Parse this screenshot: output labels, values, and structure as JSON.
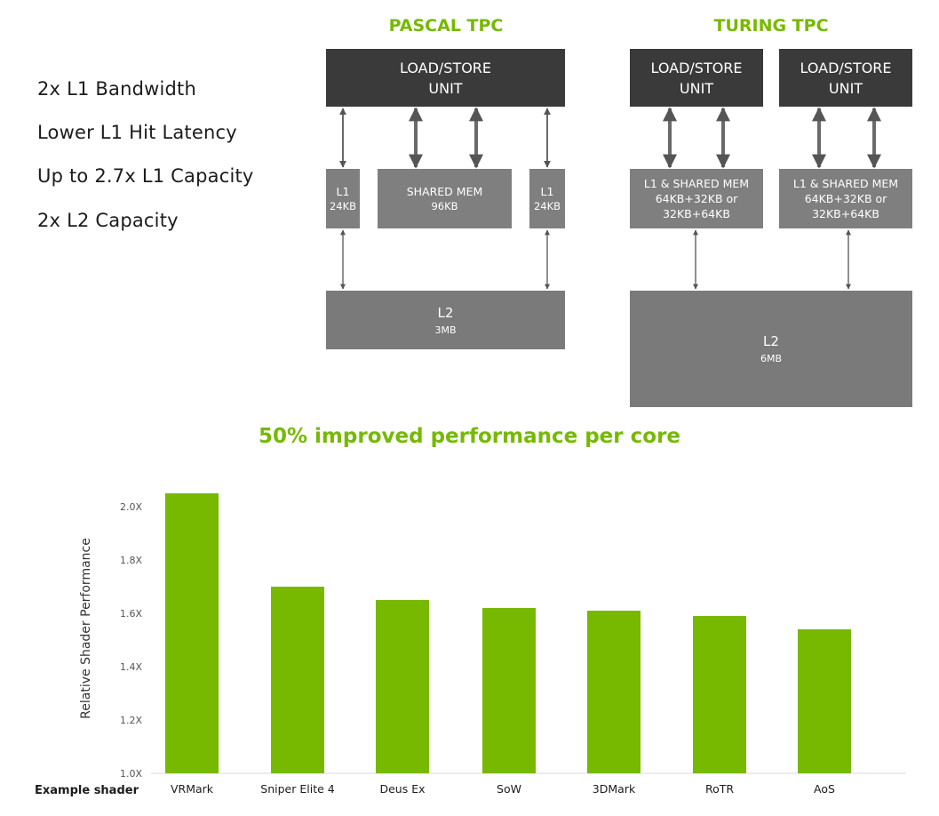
{
  "features": [
    "2x L1 Bandwidth",
    "Lower L1 Hit Latency",
    "Up to 2.7x L1 Capacity",
    "2x L2 Capacity"
  ],
  "pascal": {
    "title": "PASCAL TPC",
    "ls_line1": "LOAD/STORE",
    "ls_line2": "UNIT",
    "l1_label": "L1",
    "l1_size": "24KB",
    "shared_label": "SHARED MEM",
    "shared_size": "96KB",
    "l2_label": "L2",
    "l2_size": "3MB"
  },
  "turing": {
    "title": "TURING TPC",
    "ls_line1": "LOAD/STORE",
    "ls_line2": "UNIT",
    "l1_line1": "L1 & SHARED MEM",
    "l1_line2": "64KB+32KB or",
    "l1_line3": "32KB+64KB",
    "l2_label": "L2",
    "l2_size": "6MB"
  },
  "colors": {
    "accent": "#76b900",
    "dark_box": "#3a3a3a",
    "mid_box": "#7f7f7f"
  },
  "chart_data": {
    "type": "bar",
    "title": "50% improved performance per core",
    "ylabel": "Relative Shader Performance",
    "xrow_label": "Example shader",
    "categories": [
      "VRMark",
      "Sniper Elite 4",
      "Deus Ex",
      "SoW",
      "3DMark",
      "RoTR",
      "AoS"
    ],
    "values": [
      2.05,
      1.7,
      1.65,
      1.62,
      1.61,
      1.59,
      1.54
    ],
    "ylim": [
      1.0,
      2.1
    ],
    "yticks": [
      1.0,
      1.2,
      1.4,
      1.6,
      1.8,
      2.0
    ],
    "ytick_labels": [
      "1.0X",
      "1.2X",
      "1.4X",
      "1.6X",
      "1.8X",
      "2.0X"
    ],
    "grid": false,
    "bar_color": "#76b900"
  }
}
